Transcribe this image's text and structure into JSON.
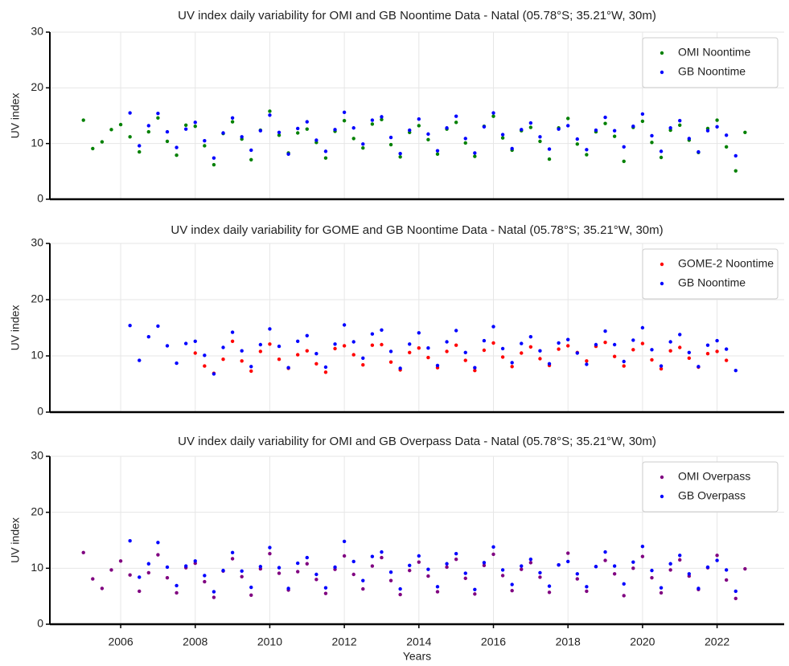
{
  "chart_data": [
    {
      "type": "scatter",
      "title": "UV index daily variability for OMI and GB Noontime Data - Natal (05.78°S; 35.21°W, 30m)",
      "ylabel": "UV index",
      "x": [
        2005,
        2005.25,
        2005.5,
        2005.75,
        2006,
        2006.25,
        2006.5,
        2006.75,
        2007,
        2007.25,
        2007.5,
        2007.75,
        2008,
        2008.25,
        2008.5,
        2008.75,
        2009,
        2009.25,
        2009.5,
        2009.75,
        2010,
        2010.25,
        2010.5,
        2010.75,
        2011,
        2011.25,
        2011.5,
        2011.75,
        2012,
        2012.25,
        2012.5,
        2012.75,
        2013,
        2013.25,
        2013.5,
        2013.75,
        2014,
        2014.25,
        2014.5,
        2014.75,
        2015,
        2015.25,
        2015.5,
        2015.75,
        2016,
        2016.25,
        2016.5,
        2016.75,
        2017,
        2017.25,
        2017.5,
        2017.75,
        2018,
        2018.25,
        2018.5,
        2018.75,
        2019,
        2019.25,
        2019.5,
        2019.75,
        2020,
        2020.25,
        2020.5,
        2020.75,
        2021,
        2021.25,
        2021.5,
        2021.75,
        2022,
        2022.25,
        2022.5,
        2022.75
      ],
      "series": [
        {
          "name": "OMI Noontime",
          "color": "#008000",
          "values": [
            14.2,
            9.1,
            10.3,
            12.5,
            13.4,
            11.2,
            8.5,
            12.1,
            14.6,
            10.4,
            7.9,
            13.3,
            13.1,
            9.6,
            6.2,
            11.8,
            13.9,
            10.8,
            7.1,
            12.4,
            15.8,
            11.5,
            8.3,
            11.9,
            12.6,
            10.2,
            7.4,
            12.2,
            14.1,
            10.9,
            9.2,
            13.5,
            14.3,
            9.8,
            7.6,
            12.0,
            13.2,
            10.7,
            8.1,
            12.6,
            13.8,
            10.1,
            7.7,
            13.1,
            14.9,
            11.0,
            8.8,
            12.3,
            12.9,
            10.4,
            7.2,
            12.8,
            14.5,
            9.9,
            8.0,
            12.1,
            13.6,
            11.3,
            6.8,
            12.9,
            14.0,
            10.2,
            7.5,
            12.4,
            13.3,
            10.6,
            8.4,
            12.7,
            14.2,
            9.4,
            5.1,
            12.0
          ]
        },
        {
          "name": "GB Noontime",
          "color": "#0000ff",
          "values": [
            null,
            null,
            null,
            null,
            null,
            15.5,
            9.6,
            13.2,
            15.4,
            12.1,
            9.3,
            12.6,
            13.8,
            10.5,
            7.4,
            11.9,
            14.6,
            11.2,
            8.8,
            12.3,
            15.1,
            12.0,
            8.1,
            12.7,
            13.9,
            10.6,
            8.6,
            12.5,
            15.6,
            12.8,
            9.9,
            14.2,
            14.8,
            11.1,
            8.2,
            12.4,
            14.4,
            11.7,
            8.7,
            12.8,
            14.9,
            10.9,
            8.3,
            13.0,
            15.5,
            11.6,
            9.1,
            12.5,
            13.7,
            11.2,
            9.0,
            12.6,
            13.2,
            10.8,
            8.9,
            12.4,
            14.7,
            12.3,
            9.4,
            13.1,
            15.3,
            11.4,
            8.6,
            12.8,
            14.1,
            10.9,
            8.5,
            12.3,
            13.0,
            11.5,
            7.8,
            null
          ]
        }
      ],
      "xlim": [
        2004.1,
        2023.8
      ],
      "ylim": [
        0,
        30
      ],
      "yticks": [
        0,
        10,
        20,
        30
      ],
      "xticks": [
        2006,
        2008,
        2010,
        2012,
        2014,
        2016,
        2018,
        2020,
        2022
      ],
      "grid": true,
      "legend": "upper right"
    },
    {
      "type": "scatter",
      "title": "UV index daily variability for GOME and GB Noontime Data - Natal (05.78°S; 35.21°W, 30m)",
      "ylabel": "UV index",
      "x": [
        2005,
        2005.25,
        2005.5,
        2005.75,
        2006,
        2006.25,
        2006.5,
        2006.75,
        2007,
        2007.25,
        2007.5,
        2007.75,
        2008,
        2008.25,
        2008.5,
        2008.75,
        2009,
        2009.25,
        2009.5,
        2009.75,
        2010,
        2010.25,
        2010.5,
        2010.75,
        2011,
        2011.25,
        2011.5,
        2011.75,
        2012,
        2012.25,
        2012.5,
        2012.75,
        2013,
        2013.25,
        2013.5,
        2013.75,
        2014,
        2014.25,
        2014.5,
        2014.75,
        2015,
        2015.25,
        2015.5,
        2015.75,
        2016,
        2016.25,
        2016.5,
        2016.75,
        2017,
        2017.25,
        2017.5,
        2017.75,
        2018,
        2018.25,
        2018.5,
        2018.75,
        2019,
        2019.25,
        2019.5,
        2019.75,
        2020,
        2020.25,
        2020.5,
        2020.75,
        2021,
        2021.25,
        2021.5,
        2021.75,
        2022,
        2022.25,
        2022.5,
        2022.75
      ],
      "series": [
        {
          "name": "GOME-2 Noontime",
          "color": "#ff0000",
          "values": [
            null,
            null,
            null,
            null,
            null,
            null,
            null,
            null,
            null,
            null,
            null,
            null,
            10.5,
            8.2,
            6.9,
            9.4,
            12.6,
            9.1,
            7.3,
            10.8,
            12.1,
            9.4,
            7.8,
            10.2,
            10.9,
            8.6,
            7.1,
            11.3,
            11.8,
            10.2,
            8.4,
            11.9,
            12.0,
            8.9,
            7.5,
            10.6,
            11.4,
            9.7,
            7.9,
            10.8,
            11.9,
            9.2,
            7.4,
            11.0,
            12.3,
            9.8,
            8.1,
            10.5,
            11.6,
            9.5,
            8.3,
            11.2,
            11.8,
            10.6,
            9.1,
            11.7,
            12.4,
            9.9,
            8.2,
            11.1,
            12.2,
            9.3,
            7.7,
            10.9,
            11.5,
            9.6,
            8.0,
            10.4,
            10.8,
            9.2,
            null,
            null
          ]
        },
        {
          "name": "GB Noontime",
          "color": "#0000ff",
          "values": [
            null,
            null,
            null,
            null,
            null,
            15.4,
            9.2,
            13.4,
            15.3,
            11.8,
            8.7,
            12.2,
            12.6,
            10.1,
            6.8,
            11.5,
            14.2,
            10.9,
            8.1,
            12.0,
            14.8,
            11.7,
            7.9,
            12.6,
            13.6,
            10.4,
            8.0,
            12.1,
            15.5,
            12.5,
            9.6,
            13.9,
            14.6,
            10.8,
            7.8,
            12.1,
            14.1,
            11.4,
            8.3,
            12.5,
            14.5,
            10.6,
            7.9,
            12.7,
            15.2,
            11.3,
            8.8,
            12.2,
            13.4,
            10.9,
            8.6,
            12.3,
            12.9,
            10.5,
            8.5,
            12.0,
            14.4,
            12.0,
            9.0,
            12.8,
            15.0,
            11.1,
            8.2,
            12.5,
            13.8,
            10.6,
            8.1,
            11.9,
            12.7,
            11.2,
            7.4,
            null
          ]
        }
      ],
      "xlim": [
        2004.1,
        2023.8
      ],
      "ylim": [
        0,
        30
      ],
      "yticks": [
        0,
        10,
        20,
        30
      ],
      "xticks": [
        2006,
        2008,
        2010,
        2012,
        2014,
        2016,
        2018,
        2020,
        2022
      ],
      "grid": true,
      "legend": "upper right"
    },
    {
      "type": "scatter",
      "title": "UV index daily variability for OMI and GB Overpass Data - Natal (05.78°S; 35.21°W, 30m)",
      "ylabel": "UV index",
      "xlabel": "Years",
      "x": [
        2005,
        2005.25,
        2005.5,
        2005.75,
        2006,
        2006.25,
        2006.5,
        2006.75,
        2007,
        2007.25,
        2007.5,
        2007.75,
        2008,
        2008.25,
        2008.5,
        2008.75,
        2009,
        2009.25,
        2009.5,
        2009.75,
        2010,
        2010.25,
        2010.5,
        2010.75,
        2011,
        2011.25,
        2011.5,
        2011.75,
        2012,
        2012.25,
        2012.5,
        2012.75,
        2013,
        2013.25,
        2013.5,
        2013.75,
        2014,
        2014.25,
        2014.5,
        2014.75,
        2015,
        2015.25,
        2015.5,
        2015.75,
        2016,
        2016.25,
        2016.5,
        2016.75,
        2017,
        2017.25,
        2017.5,
        2017.75,
        2018,
        2018.25,
        2018.5,
        2018.75,
        2019,
        2019.25,
        2019.5,
        2019.75,
        2020,
        2020.25,
        2020.5,
        2020.75,
        2021,
        2021.25,
        2021.5,
        2021.75,
        2022,
        2022.25,
        2022.5,
        2022.75
      ],
      "series": [
        {
          "name": "OMI Overpass",
          "color": "#800080",
          "values": [
            12.8,
            8.1,
            6.4,
            9.7,
            11.3,
            8.8,
            5.9,
            9.2,
            12.4,
            8.3,
            5.6,
            10.1,
            10.9,
            7.6,
            4.8,
            9.5,
            11.7,
            8.5,
            5.2,
            9.9,
            12.6,
            9.1,
            6.1,
            9.4,
            10.8,
            8.0,
            5.5,
            9.8,
            12.2,
            8.9,
            6.3,
            10.4,
            11.9,
            7.8,
            5.3,
            9.6,
            11.1,
            8.6,
            5.8,
            10.2,
            11.6,
            8.2,
            5.4,
            10.5,
            12.5,
            8.7,
            6.0,
            9.8,
            11.0,
            8.4,
            5.7,
            10.6,
            12.7,
            8.1,
            5.9,
            10.3,
            11.4,
            9.0,
            5.1,
            10.0,
            12.1,
            8.3,
            5.6,
            9.7,
            11.5,
            8.6,
            6.2,
            10.1,
            12.3,
            7.9,
            4.6,
            9.9
          ]
        },
        {
          "name": "GB Overpass",
          "color": "#0000ff",
          "values": [
            null,
            null,
            null,
            null,
            null,
            14.9,
            8.4,
            10.8,
            14.6,
            10.2,
            6.9,
            10.4,
            11.3,
            8.7,
            5.8,
            9.6,
            12.8,
            9.5,
            6.6,
            10.3,
            13.7,
            10.1,
            6.4,
            10.9,
            11.9,
            8.9,
            6.5,
            10.2,
            14.8,
            11.2,
            7.8,
            12.1,
            12.9,
            9.3,
            6.3,
            10.5,
            12.2,
            9.8,
            6.7,
            10.8,
            12.6,
            9.1,
            6.2,
            11.0,
            13.8,
            9.7,
            7.1,
            10.4,
            11.6,
            9.2,
            6.8,
            10.6,
            11.2,
            9.0,
            6.7,
            10.3,
            12.9,
            10.4,
            7.2,
            11.1,
            13.9,
            9.6,
            6.5,
            10.8,
            12.3,
            9.0,
            6.4,
            10.2,
            11.4,
            9.7,
            5.9,
            null
          ]
        }
      ],
      "xlim": [
        2004.1,
        2023.8
      ],
      "ylim": [
        0,
        30
      ],
      "yticks": [
        0,
        10,
        20,
        30
      ],
      "xticks": [
        2006,
        2008,
        2010,
        2012,
        2014,
        2016,
        2018,
        2020,
        2022
      ],
      "grid": true,
      "legend": "upper right"
    }
  ]
}
